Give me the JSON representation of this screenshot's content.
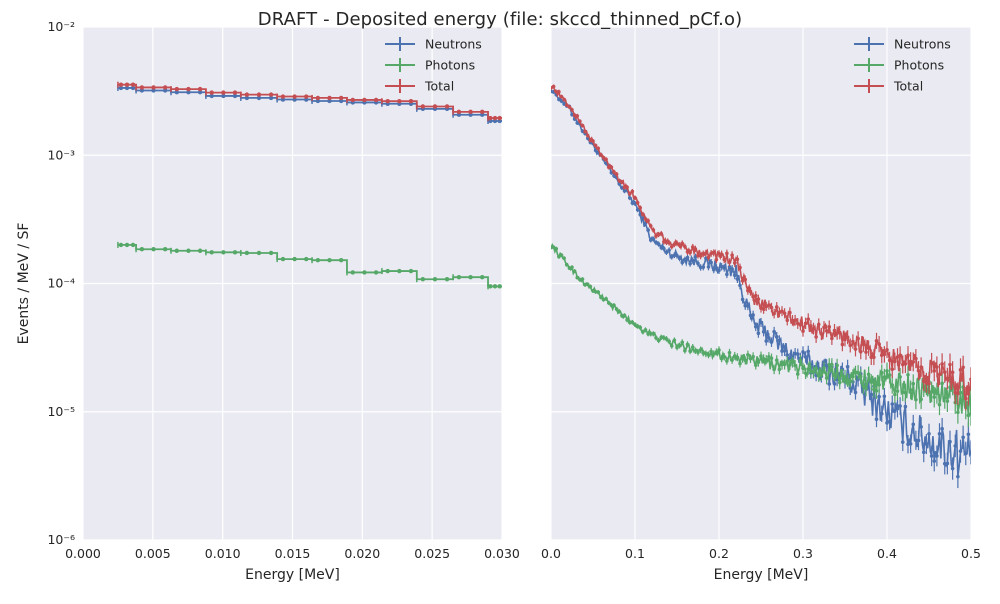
{
  "figure": {
    "title": "DRAFT - Deposited energy (file: skccd_thinned_pCf.o)",
    "background": "#ffffff",
    "axes_facecolor": "#eaeaf2",
    "grid_color": "#ffffff"
  },
  "chart_data": [
    {
      "type": "line",
      "title": "",
      "xlabel": "Energy [MeV]",
      "ylabel": "Events / MeV / SF",
      "xlim": [
        0.0,
        0.03
      ],
      "ylim": [
        1e-06,
        0.01
      ],
      "yscale": "log",
      "grid": true,
      "legend": "top-right",
      "xticks": [
        "0.000",
        "0.005",
        "0.010",
        "0.015",
        "0.020",
        "0.025",
        "0.030"
      ],
      "yticks": [
        "10⁻⁶",
        "10⁻⁵",
        "10⁻⁴",
        "10⁻³",
        "10⁻²"
      ],
      "x": [
        0.0025,
        0.0038,
        0.0063,
        0.0088,
        0.0113,
        0.0139,
        0.0164,
        0.0189,
        0.0214,
        0.0239,
        0.0265,
        0.029
      ],
      "x_end": 0.03,
      "series": [
        {
          "name": "Neutrons",
          "color": "#4c72b0",
          "values": [
            0.00335,
            0.0032,
            0.0031,
            0.0029,
            0.0028,
            0.00272,
            0.00265,
            0.00258,
            0.00252,
            0.0023,
            0.00207,
            0.00185
          ]
        },
        {
          "name": "Photons",
          "color": "#55a868",
          "values": [
            0.0002,
            0.000185,
            0.00018,
            0.000175,
            0.000173,
            0.000155,
            0.000152,
            0.000122,
            0.000125,
            0.000108,
            0.000112,
            9.5e-05
          ]
        },
        {
          "name": "Total",
          "color": "#c44e52",
          "values": [
            0.00355,
            0.00338,
            0.00328,
            0.00308,
            0.00297,
            0.00287,
            0.0028,
            0.0027,
            0.00264,
            0.0024,
            0.00218,
            0.00195
          ]
        }
      ]
    },
    {
      "type": "line",
      "title": "",
      "xlabel": "Energy [MeV]",
      "ylabel": "",
      "xlim": [
        0.0,
        0.5
      ],
      "ylim": [
        1e-06,
        0.01
      ],
      "yscale": "log",
      "grid": true,
      "legend": "top-right",
      "xticks": [
        "0.0",
        "0.1",
        "0.2",
        "0.3",
        "0.4",
        "0.5"
      ],
      "x": [
        0.0,
        0.02,
        0.04,
        0.06,
        0.08,
        0.1,
        0.12,
        0.14,
        0.16,
        0.18,
        0.2,
        0.22,
        0.24,
        0.26,
        0.28,
        0.3,
        0.32,
        0.34,
        0.36,
        0.38,
        0.4,
        0.42,
        0.44,
        0.46,
        0.48,
        0.5
      ],
      "series": [
        {
          "name": "Neutrons",
          "color": "#4c72b0",
          "values": [
            0.0033,
            0.0024,
            0.0015,
            0.00095,
            0.00062,
            0.00042,
            0.00022,
            0.000175,
            0.000155,
            0.000145,
            0.000135,
            0.000125,
            5e-05,
            4e-05,
            3e-05,
            2.5e-05,
            2.2e-05,
            2e-05,
            1.7e-05,
            1.3e-05,
            1e-05,
            8e-06,
            6.5e-06,
            5.5e-06,
            5e-06,
            4.5e-06
          ]
        },
        {
          "name": "Photons",
          "color": "#55a868",
          "values": [
            0.0002,
            0.00014,
            0.0001,
            8e-05,
            6e-05,
            4.8e-05,
            4e-05,
            3.5e-05,
            3.2e-05,
            3e-05,
            2.8e-05,
            2.6e-05,
            2.5e-05,
            2.4e-05,
            2.3e-05,
            2.2e-05,
            2.1e-05,
            2e-05,
            1.9e-05,
            1.8e-05,
            1.7e-05,
            1.6e-05,
            1.5e-05,
            1.4e-05,
            1.3e-05,
            1.2e-05
          ]
        },
        {
          "name": "Total",
          "color": "#c44e52",
          "values": [
            0.0035,
            0.0025,
            0.0016,
            0.001,
            0.00068,
            0.00047,
            0.00026,
            0.00021,
            0.00019,
            0.000175,
            0.000165,
            0.00015,
            7.5e-05,
            6.5e-05,
            5.5e-05,
            4.8e-05,
            4.3e-05,
            4e-05,
            3.6e-05,
            3.1e-05,
            2.7e-05,
            2.4e-05,
            2.2e-05,
            2e-05,
            1.8e-05,
            1.6e-05
          ]
        }
      ]
    }
  ]
}
